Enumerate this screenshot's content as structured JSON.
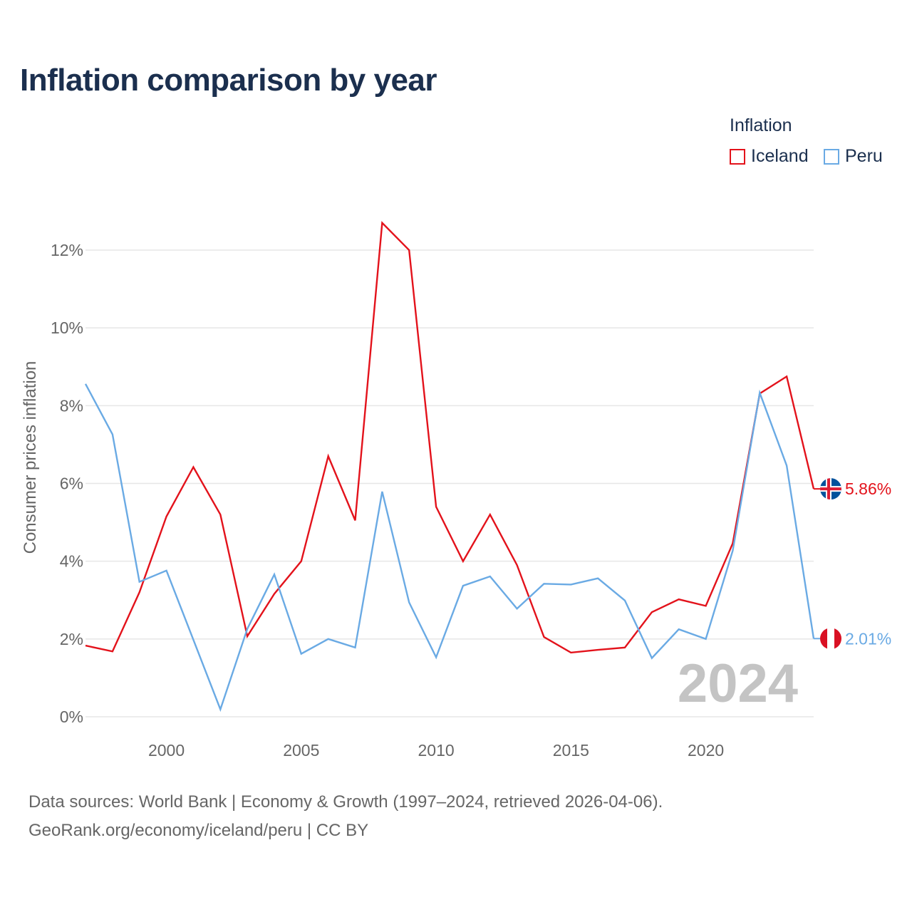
{
  "title": "Inflation comparison by year",
  "legend": {
    "title": "Inflation",
    "items": [
      {
        "label": "Iceland",
        "color": "#e3121b"
      },
      {
        "label": "Peru",
        "color": "#6aaae4"
      }
    ]
  },
  "watermark_year": "2024",
  "source": {
    "line1": "Data sources: World Bank | Economy & Growth (1997–2024, retrieved 2026-04-06).",
    "line2": "GeoRank.org/economy/iceland/peru | CC BY"
  },
  "chart_data": {
    "type": "line",
    "title": "Inflation comparison by year",
    "xlabel": "",
    "ylabel": "Consumer prices inflation",
    "xlim": [
      1997,
      2024
    ],
    "ylim": [
      0,
      13
    ],
    "x_ticks": [
      2000,
      2005,
      2010,
      2015,
      2020
    ],
    "x_tick_labels": [
      "2000",
      "2005",
      "2010",
      "2015",
      "2020"
    ],
    "y_ticks": [
      0,
      2,
      4,
      6,
      8,
      10,
      12
    ],
    "y_tick_labels": [
      "0%",
      "2%",
      "4%",
      "6%",
      "8%",
      "10%",
      "12%"
    ],
    "grid": true,
    "legend_position": "top-right",
    "x": [
      1997,
      1998,
      1999,
      2000,
      2001,
      2002,
      2003,
      2004,
      2005,
      2006,
      2007,
      2008,
      2009,
      2010,
      2011,
      2012,
      2013,
      2014,
      2015,
      2016,
      2017,
      2018,
      2019,
      2020,
      2021,
      2022,
      2023,
      2024
    ],
    "series": [
      {
        "name": "Iceland",
        "color": "#e3121b",
        "values": [
          1.83,
          1.68,
          3.2,
          5.15,
          6.42,
          5.2,
          2.07,
          3.16,
          4.0,
          6.7,
          5.05,
          12.7,
          12.0,
          5.4,
          4.0,
          5.2,
          3.9,
          2.05,
          1.65,
          1.72,
          1.78,
          2.69,
          3.02,
          2.85,
          4.46,
          8.31,
          8.75,
          5.86
        ],
        "end_label": "5.86%"
      },
      {
        "name": "Peru",
        "color": "#6aaae4",
        "values": [
          8.56,
          7.26,
          3.47,
          3.76,
          1.98,
          0.19,
          2.26,
          3.66,
          1.62,
          2.0,
          1.78,
          5.79,
          2.94,
          1.53,
          3.37,
          3.61,
          2.78,
          3.42,
          3.4,
          3.56,
          2.99,
          1.51,
          2.25,
          2.0,
          4.27,
          8.33,
          6.46,
          2.01
        ],
        "end_label": "2.01%"
      }
    ]
  }
}
